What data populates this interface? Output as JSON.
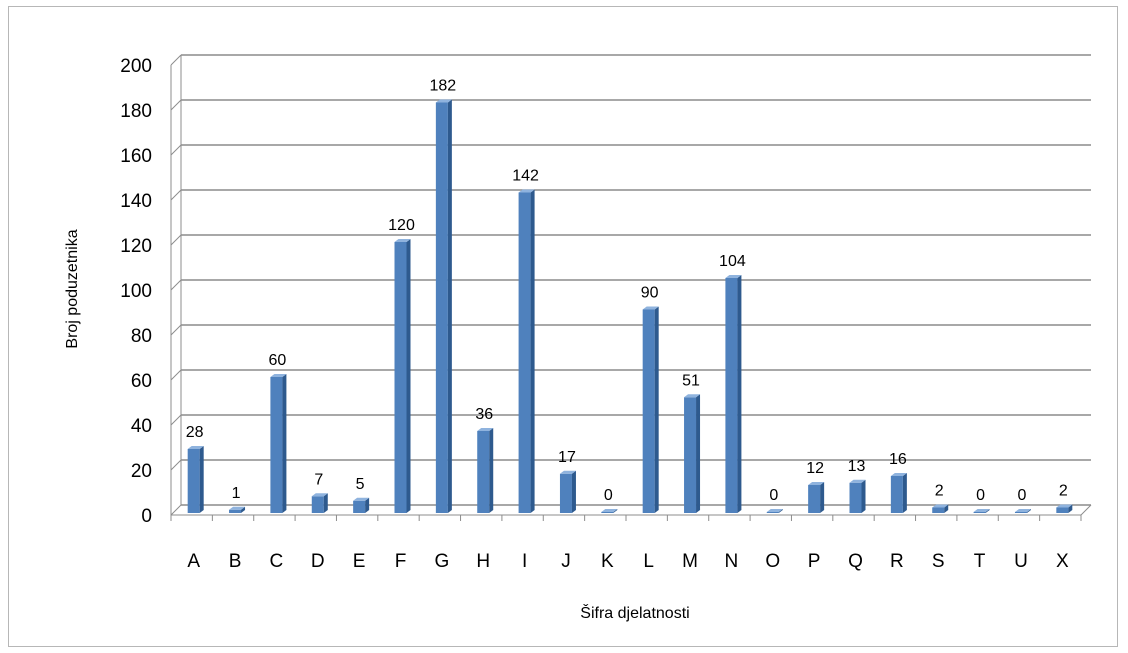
{
  "chart_data": {
    "type": "bar",
    "categories": [
      "A",
      "B",
      "C",
      "D",
      "E",
      "F",
      "G",
      "H",
      "I",
      "J",
      "K",
      "L",
      "M",
      "N",
      "O",
      "P",
      "Q",
      "R",
      "S",
      "T",
      "U",
      "X"
    ],
    "values": [
      28,
      1,
      60,
      7,
      5,
      120,
      182,
      36,
      142,
      17,
      0,
      90,
      51,
      104,
      0,
      12,
      13,
      16,
      2,
      0,
      0,
      2
    ],
    "xlabel": "Šifra djelatnosti",
    "ylabel": "Broj poduzetnika",
    "ylim": [
      0,
      200
    ],
    "yticks": [
      0,
      20,
      40,
      60,
      80,
      100,
      120,
      140,
      160,
      180,
      200
    ],
    "data_labels": true,
    "grid": true,
    "legend": "none",
    "bar_color": "#4f81bd",
    "style": "3d-column"
  }
}
